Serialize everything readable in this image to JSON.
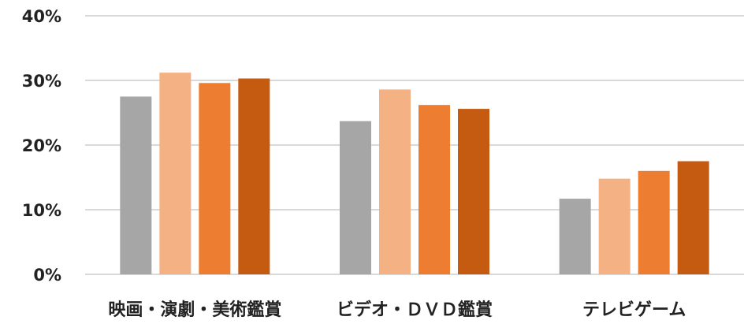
{
  "chart_data": {
    "type": "bar",
    "title": "",
    "xlabel": "",
    "ylabel": "",
    "categories": [
      "映画・演劇・美術鑑賞",
      "ビデオ・ＤＶＤ鑑賞",
      "テレビゲーム"
    ],
    "series": [
      {
        "values": [
          27.5,
          23.7,
          11.7
        ],
        "color": "#a6a6a6"
      },
      {
        "values": [
          31.2,
          28.6,
          14.8
        ],
        "color": "#f4b183"
      },
      {
        "values": [
          29.6,
          26.2,
          16.0
        ],
        "color": "#ed7d31"
      },
      {
        "values": [
          30.3,
          25.6,
          17.5
        ],
        "color": "#c55a11"
      }
    ],
    "ylim": [
      0,
      40
    ],
    "yticks": [
      {
        "value": 0,
        "label": "0%"
      },
      {
        "value": 10,
        "label": "10%"
      },
      {
        "value": 20,
        "label": "20%"
      },
      {
        "value": 30,
        "label": "30%"
      },
      {
        "value": 40,
        "label": "40%"
      }
    ],
    "grid": true,
    "legend": "none"
  }
}
